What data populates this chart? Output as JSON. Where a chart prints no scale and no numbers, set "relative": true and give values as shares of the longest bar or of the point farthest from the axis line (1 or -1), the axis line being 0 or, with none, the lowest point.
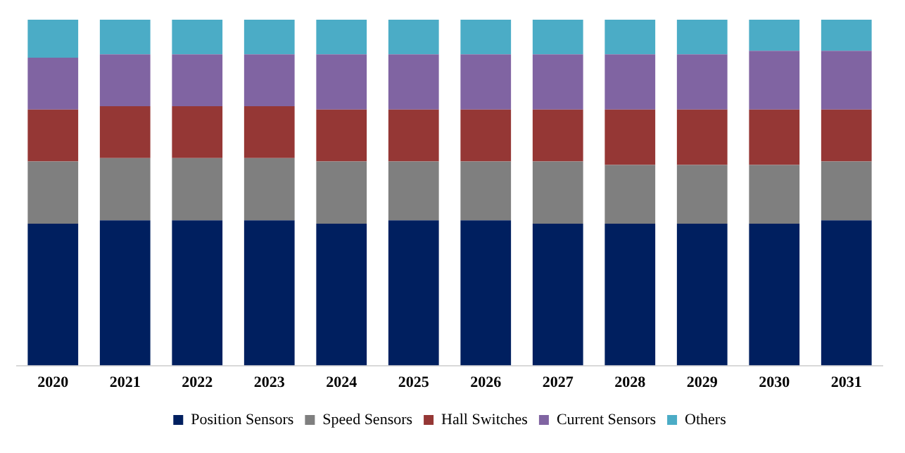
{
  "chart_data": {
    "type": "bar",
    "stacked": true,
    "relative": true,
    "legend": "bottom",
    "categories": [
      "2020",
      "2021",
      "2022",
      "2023",
      "2024",
      "2025",
      "2026",
      "2027",
      "2028",
      "2029",
      "2030",
      "2031"
    ],
    "series": [
      {
        "name": "Position Sensors",
        "color": "#001f5f",
        "values": [
          0.41,
          0.42,
          0.42,
          0.42,
          0.41,
          0.42,
          0.42,
          0.41,
          0.41,
          0.41,
          0.41,
          0.42
        ]
      },
      {
        "name": "Speed Sensors",
        "color": "#7f7f7f",
        "values": [
          0.18,
          0.18,
          0.18,
          0.18,
          0.18,
          0.17,
          0.17,
          0.18,
          0.17,
          0.17,
          0.17,
          0.17
        ]
      },
      {
        "name": "Hall Switches",
        "color": "#953735",
        "values": [
          0.15,
          0.15,
          0.15,
          0.15,
          0.15,
          0.15,
          0.15,
          0.15,
          0.16,
          0.16,
          0.16,
          0.15
        ]
      },
      {
        "name": "Current Sensors",
        "color": "#8064a2",
        "values": [
          0.15,
          0.15,
          0.15,
          0.15,
          0.16,
          0.16,
          0.16,
          0.16,
          0.16,
          0.16,
          0.17,
          0.17
        ]
      },
      {
        "name": "Others",
        "color": "#4bacc6",
        "values": [
          0.11,
          0.1,
          0.1,
          0.1,
          0.1,
          0.1,
          0.1,
          0.1,
          0.1,
          0.1,
          0.09,
          0.09
        ]
      }
    ]
  }
}
